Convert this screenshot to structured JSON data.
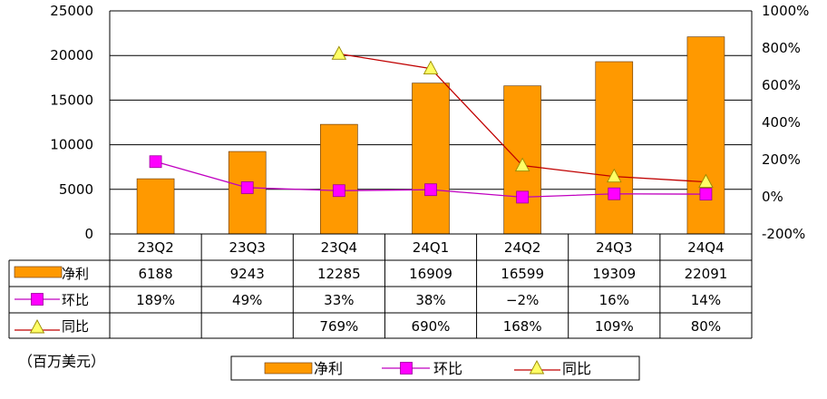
{
  "chart_data": {
    "type": "bar",
    "unit_label": "（百万美元）",
    "categories": [
      "23Q2",
      "23Q3",
      "23Q4",
      "24Q1",
      "24Q2",
      "24Q3",
      "24Q4"
    ],
    "y_left": {
      "ticks": [
        "0",
        "5000",
        "10000",
        "15000",
        "20000",
        "25000"
      ],
      "ylim": [
        0,
        25000
      ]
    },
    "y_right": {
      "ticks": [
        "-200%",
        "0%",
        "200%",
        "400%",
        "600%",
        "800%",
        "1000%"
      ],
      "ylim": [
        -200,
        1000
      ]
    },
    "series": [
      {
        "name": "净利",
        "type": "bar",
        "axis": "left",
        "values": [
          6188,
          9243,
          12285,
          16909,
          16599,
          19309,
          22091
        ],
        "labels": [
          "6188",
          "9243",
          "12285",
          "16909",
          "16599",
          "19309",
          "22091"
        ]
      },
      {
        "name": "环比",
        "type": "line",
        "axis": "right",
        "values": [
          189,
          49,
          33,
          38,
          -2,
          16,
          14
        ],
        "labels": [
          "189%",
          "49%",
          "33%",
          "38%",
          "−2%",
          "16%",
          "14%"
        ]
      },
      {
        "name": "同比",
        "type": "line",
        "axis": "right",
        "values": [
          null,
          null,
          769,
          690,
          168,
          109,
          80
        ],
        "labels": [
          "",
          "",
          "769%",
          "690%",
          "168%",
          "109%",
          "80%"
        ]
      }
    ],
    "colors": {
      "bar": "#FF9900",
      "bar_edge": "#5a3000",
      "qoq_line": "#C000C0",
      "qoq_marker": "#FF00FF",
      "yoy_line": "#C00000",
      "yoy_marker": "#FFFF66",
      "grid": "#000000"
    }
  }
}
